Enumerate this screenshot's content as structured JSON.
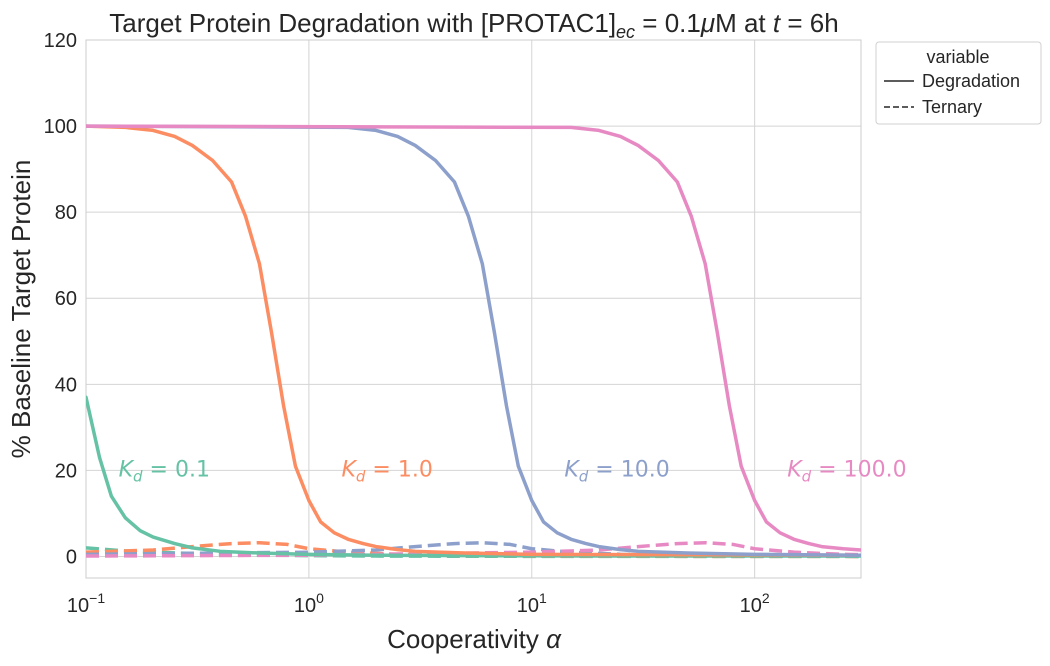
{
  "chart_data": {
    "type": "line",
    "title": {
      "prefix": "Target Protein Degradation with [PROTAC1]",
      "sub": "ec",
      "middle": " = 0.1",
      "mu": "μ",
      "after_mu": "M at ",
      "t": "t",
      "suffix": " = 6h"
    },
    "xlabel": {
      "text": "Cooperativity ",
      "symbol": "α"
    },
    "ylabel": "% Baseline Target Protein",
    "xscale": "log",
    "xlim": [
      0.1,
      300
    ],
    "ylim": [
      -5,
      120
    ],
    "x_ticks": [
      {
        "base": "10",
        "exp": "−1",
        "value": 0.1
      },
      {
        "base": "10",
        "exp": "0",
        "value": 1
      },
      {
        "base": "10",
        "exp": "1",
        "value": 10
      },
      {
        "base": "10",
        "exp": "2",
        "value": 100
      }
    ],
    "y_ticks": [
      "0",
      "20",
      "40",
      "60",
      "80",
      "100",
      "120"
    ],
    "y_tick_values": [
      0,
      20,
      40,
      60,
      80,
      100,
      120
    ],
    "grid": true,
    "legend": {
      "placement": "outside-upper-right",
      "title": "variable",
      "entries": [
        {
          "label": "Degradation",
          "style": "solid"
        },
        {
          "label": "Ternary",
          "style": "dashed"
        }
      ]
    },
    "series": [
      {
        "kd_label": {
          "sym": "K",
          "sub": "d",
          "value": " = 0.1"
        },
        "kd": 0.1,
        "color": "#66c2a5",
        "degradation": {
          "x": [
            0.1,
            0.115,
            0.13,
            0.15,
            0.175,
            0.2,
            0.25,
            0.3,
            0.4,
            0.6,
            1,
            2,
            5,
            20,
            300
          ],
          "y": [
            37,
            23,
            14,
            9,
            6,
            4.5,
            3,
            2,
            1.2,
            0.8,
            0.5,
            0.3,
            0.2,
            0.1,
            0.1
          ]
        },
        "ternary": {
          "x": [
            0.1,
            0.15,
            0.2,
            0.3,
            0.5,
            1,
            2,
            5,
            20,
            300
          ],
          "y": [
            2,
            1.3,
            1,
            0.7,
            0.4,
            0.2,
            0.1,
            0.05,
            0.02,
            0.01
          ]
        }
      },
      {
        "kd_label": {
          "sym": "K",
          "sub": "d",
          "value": " = 1.0"
        },
        "kd": 1.0,
        "color": "#fc8d62",
        "degradation": {
          "x": [
            0.1,
            0.15,
            0.2,
            0.25,
            0.3,
            0.37,
            0.45,
            0.52,
            0.6,
            0.68,
            0.77,
            0.87,
            1.0,
            1.13,
            1.3,
            1.5,
            1.75,
            2,
            2.5,
            3,
            5,
            10,
            300
          ],
          "y": [
            100,
            99.7,
            99,
            97.6,
            95.5,
            92,
            87,
            79,
            68,
            52,
            35,
            21,
            13,
            8,
            5.5,
            4,
            3,
            2.3,
            1.6,
            1.2,
            0.8,
            0.5,
            0.3
          ]
        },
        "ternary": {
          "x": [
            0.1,
            0.2,
            0.3,
            0.45,
            0.6,
            0.8,
            1,
            1.5,
            2.5,
            5,
            20,
            300
          ],
          "y": [
            1,
            1.5,
            2.3,
            3,
            3.2,
            2.8,
            1.8,
            1,
            0.5,
            0.2,
            0.05,
            0.01
          ]
        }
      },
      {
        "kd_label": {
          "sym": "K",
          "sub": "d",
          "value": " = 10.0"
        },
        "kd": 10.0,
        "color": "#8da0cb",
        "degradation": {
          "x": [
            0.1,
            1.5,
            2,
            2.5,
            3,
            3.7,
            4.5,
            5.2,
            6,
            6.8,
            7.7,
            8.7,
            10,
            11.3,
            13,
            15,
            17.5,
            20,
            25,
            30,
            50,
            100,
            300
          ],
          "y": [
            100,
            99.7,
            99,
            97.6,
            95.5,
            92,
            87,
            79,
            68,
            52,
            35,
            21,
            13,
            8,
            5.5,
            4,
            3,
            2.3,
            1.6,
            1.2,
            0.8,
            0.5,
            0.3
          ]
        },
        "ternary": {
          "x": [
            0.1,
            1,
            2,
            3,
            4.5,
            6,
            8,
            10,
            15,
            25,
            50,
            300
          ],
          "y": [
            0.5,
            1,
            1.5,
            2.3,
            3,
            3.2,
            2.8,
            1.8,
            1,
            0.5,
            0.2,
            0.05
          ]
        }
      },
      {
        "kd_label": {
          "sym": "K",
          "sub": "d",
          "value": " = 100.0"
        },
        "kd": 100.0,
        "color": "#e78ac3",
        "degradation": {
          "x": [
            0.1,
            15,
            20,
            25,
            30,
            37,
            45,
            52,
            60,
            68,
            77,
            87,
            100,
            113,
            130,
            150,
            175,
            200,
            250,
            300
          ],
          "y": [
            100,
            99.7,
            99,
            97.6,
            95.5,
            92,
            87,
            79,
            68,
            52,
            35,
            21,
            13,
            8,
            5.5,
            4,
            3,
            2.3,
            1.8,
            1.5
          ]
        },
        "ternary": {
          "x": [
            0.1,
            1,
            10,
            20,
            30,
            45,
            60,
            80,
            100,
            150,
            250,
            300
          ],
          "y": [
            0.1,
            0.3,
            1,
            1.5,
            2.3,
            3,
            3.2,
            2.8,
            1.8,
            1,
            0.5,
            0.4
          ]
        }
      }
    ]
  }
}
